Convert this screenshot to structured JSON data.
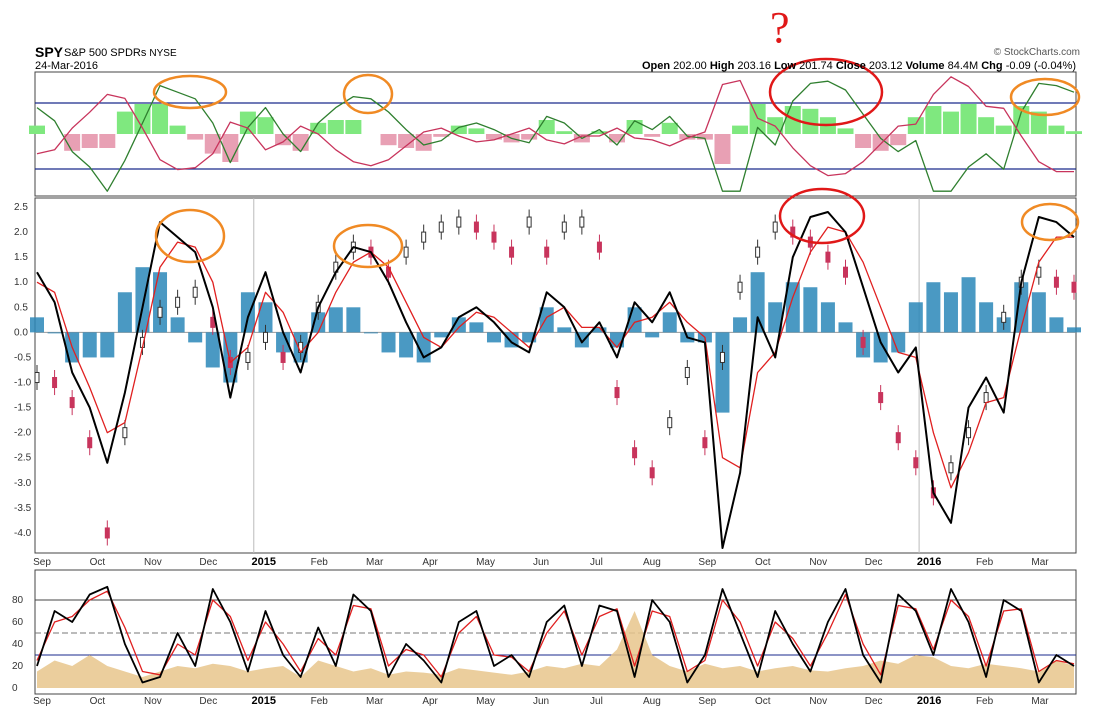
{
  "header": {
    "symbol": "SPY",
    "description": "S&P 500 SPDRs",
    "exchange": "NYSE",
    "date": "24-Mar-2016",
    "credit": "© StockCharts.com",
    "open_label": "Open",
    "open_value": "202.00",
    "high_label": "High",
    "high_value": "203.16",
    "low_label": "Low",
    "low_value": "201.74",
    "close_label": "Close",
    "close_value": "203.12",
    "volume_label": "Volume",
    "volume_value": "84.4M",
    "chg_label": "Chg",
    "chg_value": "-0.09 (-0.04%)"
  },
  "colors": {
    "histogram": "#2a87b8",
    "fast_line": "#000000",
    "signal_line": "#e02020",
    "candle_up": "#333333",
    "candle_down": "#c8345c",
    "volume": "#e8c68c",
    "top_fill_up": "#7fe87f",
    "top_fill_down": "#e8a0b4",
    "top_green_line": "#2f7f2f",
    "top_red_line": "#c8345c",
    "annotation_orange": "#f08a24",
    "annotation_red": "#e01818",
    "reference_line": "#1a2a8c"
  },
  "annotations": {
    "question_mark": "?"
  },
  "chart_data": [
    {
      "type": "area",
      "panel": "top indicator",
      "yticks": [],
      "reference_lines": 2,
      "annotation_circles_orange": 3,
      "annotation_circles_red": 1
    },
    {
      "type": "line",
      "panel": "main",
      "ylim": [
        -4.3,
        2.6
      ],
      "yticks": [
        "2.5",
        "2.0",
        "1.5",
        "1.0",
        "0.5",
        "0.0",
        "-0.5",
        "-1.0",
        "-1.5",
        "-2.0",
        "-2.5",
        "-3.0",
        "-3.5",
        "-4.0"
      ],
      "x_labels": [
        "Sep",
        "Oct",
        "Nov",
        "Dec",
        "2015",
        "Feb",
        "Mar",
        "Apr",
        "May",
        "Jun",
        "Jul",
        "Aug",
        "Sep",
        "Oct",
        "Nov",
        "Dec",
        "2016",
        "Feb",
        "Mar"
      ],
      "x_label_bold": [
        "2015",
        "2016"
      ],
      "series": [
        {
          "name": "",
          "style": "black line",
          "values": [
            1.2,
            0.6,
            -0.8,
            -1.5,
            -2.6,
            -1.2,
            0.5,
            2.2,
            1.9,
            1.6,
            0.5,
            -1.3,
            0.3,
            1.2,
            0.0,
            -0.8,
            0.5,
            1.2,
            1.7,
            1.6,
            1.0,
            0.2,
            -0.5,
            -0.3,
            0.3,
            0.5,
            0.2,
            -0.2,
            -0.4,
            0.8,
            0.5,
            -0.2,
            0.2,
            -0.5,
            0.6,
            0.2,
            0.8,
            -0.1,
            -0.2,
            -4.3,
            -2.8,
            0.3,
            -0.5,
            1.5,
            2.3,
            2.4,
            2.0,
            0.9,
            -0.2,
            -0.8,
            -0.3,
            -3.2,
            -3.8,
            -1.5,
            -0.9,
            -1.6,
            1.0,
            2.3,
            2.2,
            1.9
          ]
        },
        {
          "name": "",
          "style": "red line",
          "values": [
            1.0,
            0.8,
            -0.3,
            -1.1,
            -2.0,
            -1.8,
            -0.3,
            1.3,
            1.8,
            1.7,
            1.0,
            -0.6,
            -0.3,
            0.8,
            0.4,
            -0.4,
            0.0,
            0.8,
            1.4,
            1.6,
            1.3,
            0.6,
            -0.1,
            -0.3,
            0.1,
            0.4,
            0.3,
            0.0,
            -0.3,
            0.3,
            0.5,
            0.1,
            0.1,
            -0.3,
            0.2,
            0.3,
            0.6,
            0.2,
            -0.1,
            -2.5,
            -2.7,
            -0.8,
            -0.4,
            0.7,
            1.6,
            2.1,
            2.0,
            1.4,
            0.5,
            -0.4,
            -0.5,
            -2.0,
            -3.1,
            -2.4,
            -1.4,
            -1.3,
            0.1,
            1.4,
            1.9,
            1.9
          ]
        },
        {
          "name": "",
          "style": "histogram",
          "values": [
            0.3,
            0.0,
            -0.6,
            -0.5,
            -0.5,
            0.8,
            1.3,
            1.2,
            0.3,
            -0.2,
            -0.7,
            -1.0,
            0.8,
            0.6,
            -0.4,
            -0.6,
            0.4,
            0.5,
            0.5,
            0.0,
            -0.4,
            -0.5,
            -0.6,
            -0.1,
            0.3,
            0.2,
            -0.2,
            -0.3,
            -0.2,
            0.5,
            0.1,
            -0.3,
            0.1,
            -0.3,
            0.5,
            -0.1,
            0.4,
            -0.2,
            -0.2,
            -1.6,
            0.3,
            1.2,
            0.6,
            1.0,
            0.9,
            0.6,
            0.2,
            -0.5,
            -0.6,
            -0.4,
            0.6,
            1.0,
            0.8,
            1.1,
            0.6,
            0.3,
            1.0,
            0.8,
            0.3,
            0.1
          ]
        },
        {
          "name": "",
          "style": "candles",
          "values": [
            -0.9,
            -1.0,
            -1.4,
            -2.2,
            -4.0,
            -2.0,
            -0.2,
            0.4,
            0.6,
            0.8,
            0.2,
            -0.6,
            -0.5,
            -0.1,
            -0.5,
            -0.3,
            0.5,
            1.3,
            1.7,
            1.6,
            1.2,
            1.6,
            1.9,
            2.1,
            2.2,
            2.1,
            1.9,
            1.6,
            2.2,
            1.6,
            2.1,
            2.2,
            1.7,
            -1.2,
            -2.4,
            -2.8,
            -1.8,
            -0.8,
            -2.2,
            -0.5,
            0.9,
            1.6,
            2.1,
            2.0,
            1.8,
            1.5,
            1.2,
            -0.2,
            -1.3,
            -2.1,
            -2.6,
            -3.2,
            -2.7,
            -2.0,
            -1.3,
            0.3,
            1.0,
            1.2,
            1.0,
            0.9
          ]
        }
      ]
    },
    {
      "type": "line",
      "panel": "bottom oscillator",
      "ylim": [
        0,
        100
      ],
      "yticks": [
        "80",
        "60",
        "40",
        "20",
        "0"
      ],
      "x_labels": [
        "Sep",
        "Oct",
        "Nov",
        "Dec",
        "2015",
        "Feb",
        "Mar",
        "Apr",
        "May",
        "Jun",
        "Jul",
        "Aug",
        "Sep",
        "Oct",
        "Nov",
        "Dec",
        "2016",
        "Feb",
        "Mar"
      ],
      "x_label_bold": [
        "2015",
        "2016"
      ],
      "reference_levels": [
        80,
        50,
        30
      ],
      "series": [
        {
          "name": "",
          "style": "black line",
          "values": [
            20,
            70,
            60,
            85,
            92,
            40,
            5,
            10,
            50,
            20,
            90,
            60,
            15,
            70,
            30,
            10,
            55,
            20,
            85,
            70,
            10,
            40,
            25,
            5,
            60,
            70,
            20,
            30,
            10,
            60,
            75,
            20,
            75,
            70,
            10,
            80,
            60,
            5,
            30,
            90,
            50,
            10,
            70,
            40,
            15,
            60,
            90,
            30,
            5,
            85,
            70,
            30,
            90,
            60,
            10,
            80,
            70,
            5,
            30,
            20
          ]
        },
        {
          "name": "",
          "style": "red line",
          "values": [
            25,
            60,
            65,
            80,
            88,
            55,
            15,
            12,
            40,
            30,
            80,
            65,
            25,
            60,
            40,
            15,
            45,
            30,
            75,
            72,
            20,
            35,
            30,
            10,
            50,
            65,
            30,
            28,
            15,
            50,
            70,
            30,
            65,
            72,
            20,
            70,
            65,
            15,
            25,
            80,
            60,
            20,
            60,
            45,
            20,
            50,
            85,
            40,
            12,
            75,
            72,
            35,
            80,
            65,
            20,
            70,
            72,
            15,
            25,
            22
          ]
        },
        {
          "name": "",
          "style": "volume area",
          "values": [
            15,
            25,
            20,
            30,
            20,
            15,
            10,
            15,
            20,
            18,
            22,
            20,
            15,
            18,
            20,
            10,
            25,
            20,
            15,
            18,
            12,
            15,
            14,
            12,
            18,
            16,
            14,
            12,
            15,
            20,
            18,
            22,
            20,
            35,
            70,
            30,
            20,
            15,
            22,
            18,
            20,
            15,
            18,
            20,
            16,
            15,
            18,
            20,
            25,
            22,
            30,
            28,
            20,
            18,
            22,
            20,
            18,
            15,
            25,
            20
          ]
        }
      ]
    }
  ]
}
